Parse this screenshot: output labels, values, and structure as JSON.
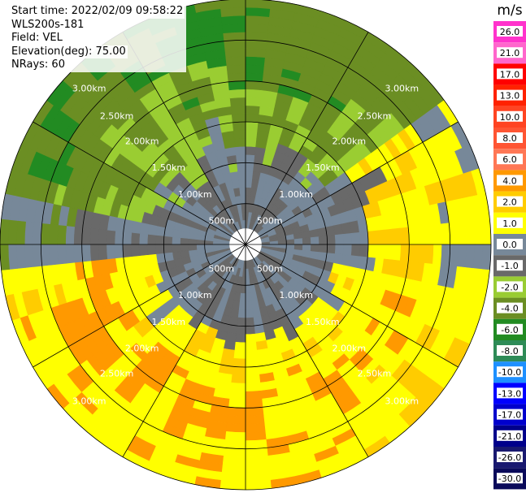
{
  "info": {
    "start_time": "Start time: 2022/02/09 09:58:22",
    "station": "WLS200s-181",
    "field": "Field: VEL",
    "elevation": "Elevation(deg): 75.00",
    "nrays": "NRays: 60"
  },
  "range_labels": [
    "500m",
    "1.00km",
    "1.50km",
    "2.00km",
    "2.50km",
    "3.00km"
  ],
  "colorbar": {
    "unit": "m/s",
    "ticks": [
      "26.0",
      "21.0",
      "17.0",
      "13.0",
      "10.0",
      "8.0",
      "6.0",
      "4.0",
      "2.0",
      "1.0",
      "0.0",
      "-1.0",
      "-2.0",
      "-4.0",
      "-6.0",
      "-8.0",
      "-10.0",
      "-13.0",
      "-17.0",
      "-21.0",
      "-26.0",
      "-30.0"
    ],
    "colors": [
      "#ff33cc",
      "#ff66cc",
      "#ff0000",
      "#ff2200",
      "#ff4422",
      "#ff5533",
      "#ff7755",
      "#ff9900",
      "#ffcc00",
      "#ffff00",
      "#778899",
      "#696969",
      "#99cc33",
      "#6b8e23",
      "#228b22",
      "#2e8b57",
      "#1e90ff",
      "#0000ff",
      "#0000cd",
      "#00008b",
      "#191970",
      "#0a0a5a"
    ]
  },
  "field_colors": {
    "gray_light": "#778899",
    "gray_dark": "#696969",
    "lime": "#9acd32",
    "olive": "#6b8e23",
    "green": "#228b22",
    "yellow": "#ffff00",
    "gold": "#ffcc00",
    "orange": "#ff9900",
    "red": "#ff6666"
  }
}
